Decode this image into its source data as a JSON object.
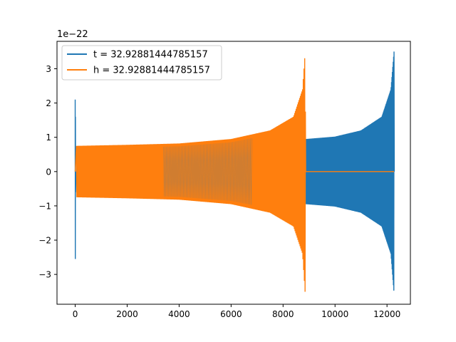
{
  "chart_data": {
    "type": "line",
    "title": "",
    "xlabel": "",
    "ylabel": "",
    "y_offset_label": "1e−22",
    "xlim": [
      -700,
      12900
    ],
    "ylim": [
      -3.87,
      3.8
    ],
    "x_ticks": [
      0,
      2000,
      4000,
      6000,
      8000,
      10000,
      12000
    ],
    "x_tick_labels": [
      "0",
      "2000",
      "4000",
      "6000",
      "8000",
      "10000",
      "12000"
    ],
    "y_ticks": [
      -3,
      -2,
      -1,
      0,
      1,
      2,
      3
    ],
    "y_tick_labels": [
      "−3",
      "−2",
      "−1",
      "0",
      "1",
      "2",
      "3"
    ],
    "grid": false,
    "legend_position": "top-left",
    "series": [
      {
        "name": "t = 32.92881444785157",
        "color": "#1f77b4",
        "description": "blue oscillating chirp, ringdown near 12280",
        "envelope": [
          {
            "x": 0,
            "upper": 2.1,
            "lower": -2.55
          },
          {
            "x": 100,
            "upper": 0.75,
            "lower": -0.75
          },
          {
            "x": 8860,
            "upper": 0.02,
            "lower": -0.02
          },
          {
            "x": 8870,
            "upper": 0.95,
            "lower": -0.95
          },
          {
            "x": 10000,
            "upper": 1.02,
            "lower": -1.02
          },
          {
            "x": 11000,
            "upper": 1.2,
            "lower": -1.2
          },
          {
            "x": 11800,
            "upper": 1.6,
            "lower": -1.6
          },
          {
            "x": 12150,
            "upper": 2.4,
            "lower": -2.4
          },
          {
            "x": 12270,
            "upper": 3.5,
            "lower": -3.55
          }
        ]
      },
      {
        "name": "h = 32.92881444785157",
        "color": "#ff7f0e",
        "description": "orange oscillating chirp, ringdown near 8860, flat zero afterwards",
        "envelope": [
          {
            "x": 50,
            "upper": 0.75,
            "lower": -0.75
          },
          {
            "x": 2000,
            "upper": 0.78,
            "lower": -0.78
          },
          {
            "x": 4000,
            "upper": 0.82,
            "lower": -0.82
          },
          {
            "x": 6000,
            "upper": 0.95,
            "lower": -0.95
          },
          {
            "x": 7500,
            "upper": 1.2,
            "lower": -1.2
          },
          {
            "x": 8400,
            "upper": 1.6,
            "lower": -1.6
          },
          {
            "x": 8750,
            "upper": 2.4,
            "lower": -2.4
          },
          {
            "x": 8850,
            "upper": 3.5,
            "lower": -3.55
          },
          {
            "x": 8870,
            "upper": 0.0,
            "lower": 0.0
          },
          {
            "x": 12270,
            "upper": 0.0,
            "lower": 0.0
          }
        ]
      }
    ]
  }
}
